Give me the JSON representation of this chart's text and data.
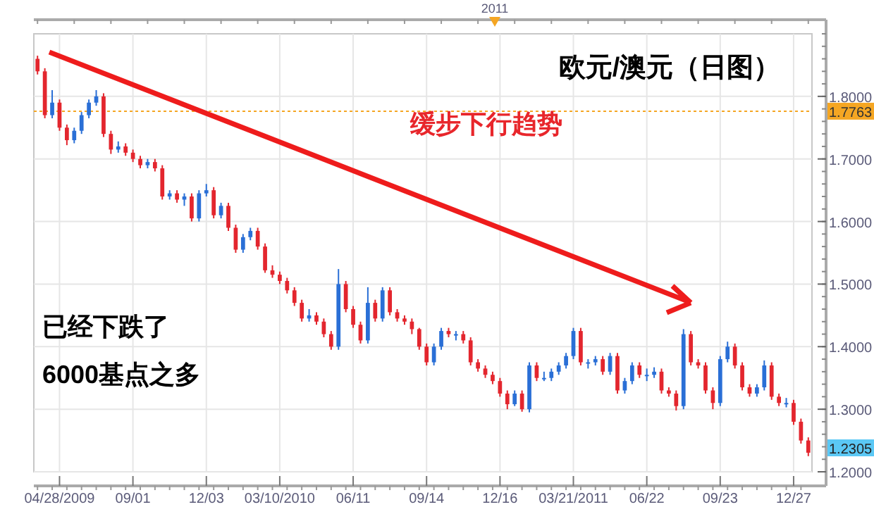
{
  "chart_data": {
    "type": "candlestick",
    "title": "欧元/澳元（日图）",
    "categories": [
      null,
      null,
      null,
      "04/28/2009",
      null,
      null,
      null,
      null,
      null,
      null,
      null,
      null,
      null,
      "09/01",
      null,
      null,
      null,
      null,
      null,
      null,
      null,
      null,
      null,
      "12/03",
      null,
      null,
      null,
      null,
      null,
      null,
      null,
      null,
      null,
      "03/10/2010",
      null,
      null,
      null,
      null,
      null,
      null,
      null,
      null,
      null,
      "06/11",
      null,
      null,
      null,
      null,
      null,
      null,
      null,
      null,
      null,
      "09/14",
      null,
      null,
      null,
      null,
      null,
      null,
      null,
      null,
      null,
      "12/16",
      null,
      null,
      null,
      null,
      null,
      null,
      null,
      null,
      null,
      "03/21/2011",
      null,
      null,
      null,
      null,
      null,
      null,
      null,
      null,
      null,
      "06/22",
      null,
      null,
      null,
      null,
      null,
      null,
      null,
      null,
      null,
      "09/23",
      null,
      null,
      null,
      null,
      null,
      null,
      null,
      null,
      null,
      "12/27",
      null,
      null
    ],
    "ohlc": [
      [
        1.86,
        1.865,
        1.835,
        1.84
      ],
      [
        1.84,
        1.845,
        1.765,
        1.77
      ],
      [
        1.77,
        1.81,
        1.765,
        1.79
      ],
      [
        1.79,
        1.795,
        1.745,
        1.75
      ],
      [
        1.75,
        1.755,
        1.722,
        1.73
      ],
      [
        1.73,
        1.75,
        1.725,
        1.745
      ],
      [
        1.745,
        1.775,
        1.74,
        1.77
      ],
      [
        1.77,
        1.795,
        1.765,
        1.79
      ],
      [
        1.79,
        1.81,
        1.785,
        1.8
      ],
      [
        1.8,
        1.805,
        1.735,
        1.74
      ],
      [
        1.74,
        1.745,
        1.708,
        1.715
      ],
      [
        1.715,
        1.728,
        1.71,
        1.72
      ],
      [
        1.72,
        1.725,
        1.705,
        1.71
      ],
      [
        1.71,
        1.715,
        1.695,
        1.7
      ],
      [
        1.7,
        1.705,
        1.685,
        1.69
      ],
      [
        1.69,
        1.7,
        1.685,
        1.695
      ],
      [
        1.695,
        1.7,
        1.68,
        1.685
      ],
      [
        1.685,
        1.69,
        1.635,
        1.64
      ],
      [
        1.64,
        1.65,
        1.635,
        1.645
      ],
      [
        1.645,
        1.65,
        1.63,
        1.635
      ],
      [
        1.635,
        1.645,
        1.625,
        1.64
      ],
      [
        1.64,
        1.645,
        1.6,
        1.605
      ],
      [
        1.605,
        1.65,
        1.6,
        1.645
      ],
      [
        1.645,
        1.66,
        1.64,
        1.65
      ],
      [
        1.65,
        1.655,
        1.605,
        1.61
      ],
      [
        1.61,
        1.63,
        1.605,
        1.625
      ],
      [
        1.625,
        1.63,
        1.585,
        1.59
      ],
      [
        1.59,
        1.595,
        1.55,
        1.555
      ],
      [
        1.555,
        1.58,
        1.55,
        1.575
      ],
      [
        1.575,
        1.59,
        1.57,
        1.585
      ],
      [
        1.585,
        1.59,
        1.555,
        1.56
      ],
      [
        1.56,
        1.565,
        1.518,
        1.522
      ],
      [
        1.522,
        1.53,
        1.51,
        1.515
      ],
      [
        1.515,
        1.52,
        1.5,
        1.505
      ],
      [
        1.505,
        1.51,
        1.485,
        1.49
      ],
      [
        1.49,
        1.495,
        1.465,
        1.47
      ],
      [
        1.47,
        1.475,
        1.44,
        1.445
      ],
      [
        1.445,
        1.46,
        1.44,
        1.45
      ],
      [
        1.45,
        1.455,
        1.435,
        1.44
      ],
      [
        1.44,
        1.445,
        1.415,
        1.42
      ],
      [
        1.42,
        1.425,
        1.395,
        1.4
      ],
      [
        1.4,
        1.524,
        1.395,
        1.5
      ],
      [
        1.5,
        1.505,
        1.455,
        1.46
      ],
      [
        1.46,
        1.465,
        1.43,
        1.435
      ],
      [
        1.435,
        1.44,
        1.405,
        1.41
      ],
      [
        1.41,
        1.495,
        1.405,
        1.47
      ],
      [
        1.47,
        1.475,
        1.44,
        1.445
      ],
      [
        1.445,
        1.495,
        1.44,
        1.49
      ],
      [
        1.49,
        1.495,
        1.45,
        1.455
      ],
      [
        1.455,
        1.46,
        1.44,
        1.445
      ],
      [
        1.445,
        1.45,
        1.435,
        1.44
      ],
      [
        1.44,
        1.445,
        1.42,
        1.428
      ],
      [
        1.428,
        1.43,
        1.395,
        1.4
      ],
      [
        1.4,
        1.405,
        1.37,
        1.375
      ],
      [
        1.375,
        1.405,
        1.37,
        1.4
      ],
      [
        1.4,
        1.43,
        1.395,
        1.425
      ],
      [
        1.425,
        1.43,
        1.415,
        1.42
      ],
      [
        1.42,
        1.425,
        1.41,
        1.42
      ],
      [
        1.42,
        1.425,
        1.405,
        1.41
      ],
      [
        1.41,
        1.415,
        1.37,
        1.375
      ],
      [
        1.375,
        1.38,
        1.36,
        1.365
      ],
      [
        1.365,
        1.37,
        1.35,
        1.355
      ],
      [
        1.355,
        1.36,
        1.34,
        1.345
      ],
      [
        1.345,
        1.35,
        1.32,
        1.325
      ],
      [
        1.325,
        1.33,
        1.3,
        1.308
      ],
      [
        1.308,
        1.33,
        1.305,
        1.325
      ],
      [
        1.325,
        1.33,
        1.296,
        1.3
      ],
      [
        1.3,
        1.375,
        1.295,
        1.37
      ],
      [
        1.37,
        1.375,
        1.345,
        1.35
      ],
      [
        1.35,
        1.36,
        1.345,
        1.35
      ],
      [
        1.35,
        1.365,
        1.345,
        1.36
      ],
      [
        1.36,
        1.375,
        1.355,
        1.37
      ],
      [
        1.37,
        1.39,
        1.365,
        1.385
      ],
      [
        1.385,
        1.43,
        1.38,
        1.425
      ],
      [
        1.425,
        1.43,
        1.37,
        1.375
      ],
      [
        1.375,
        1.38,
        1.365,
        1.375
      ],
      [
        1.375,
        1.385,
        1.37,
        1.38
      ],
      [
        1.38,
        1.385,
        1.355,
        1.36
      ],
      [
        1.36,
        1.39,
        1.355,
        1.385
      ],
      [
        1.385,
        1.39,
        1.325,
        1.33
      ],
      [
        1.33,
        1.35,
        1.325,
        1.345
      ],
      [
        1.345,
        1.375,
        1.34,
        1.37
      ],
      [
        1.37,
        1.375,
        1.35,
        1.355
      ],
      [
        1.355,
        1.365,
        1.345,
        1.355
      ],
      [
        1.355,
        1.367,
        1.35,
        1.36
      ],
      [
        1.36,
        1.365,
        1.325,
        1.33
      ],
      [
        1.33,
        1.335,
        1.32,
        1.325
      ],
      [
        1.325,
        1.33,
        1.298,
        1.305
      ],
      [
        1.305,
        1.428,
        1.3,
        1.42
      ],
      [
        1.42,
        1.425,
        1.37,
        1.375
      ],
      [
        1.375,
        1.38,
        1.365,
        1.37
      ],
      [
        1.37,
        1.375,
        1.325,
        1.33
      ],
      [
        1.33,
        1.335,
        1.3,
        1.31
      ],
      [
        1.31,
        1.385,
        1.305,
        1.38
      ],
      [
        1.38,
        1.408,
        1.375,
        1.4
      ],
      [
        1.4,
        1.405,
        1.365,
        1.37
      ],
      [
        1.37,
        1.375,
        1.33,
        1.335
      ],
      [
        1.335,
        1.34,
        1.32,
        1.325
      ],
      [
        1.325,
        1.34,
        1.32,
        1.335
      ],
      [
        1.335,
        1.378,
        1.33,
        1.37
      ],
      [
        1.37,
        1.375,
        1.315,
        1.32
      ],
      [
        1.32,
        1.325,
        1.305,
        1.31
      ],
      [
        1.31,
        1.318,
        1.303,
        1.31
      ],
      [
        1.31,
        1.315,
        1.275,
        1.28
      ],
      [
        1.28,
        1.285,
        1.245,
        1.25
      ],
      [
        1.25,
        1.255,
        1.225,
        1.2305
      ]
    ],
    "colors": [
      "#e3262e",
      "#e3262e",
      "#2a6fd6",
      "#e3262e",
      "#e3262e",
      "#2a6fd6",
      "#2a6fd6",
      "#2a6fd6",
      "#2a6fd6",
      "#e3262e",
      "#e3262e",
      "#2a6fd6",
      "#e3262e",
      "#e3262e",
      "#e3262e",
      "#2a6fd6",
      "#e3262e",
      "#e3262e",
      "#2a6fd6",
      "#e3262e",
      "#2a6fd6",
      "#e3262e",
      "#2a6fd6",
      "#2a6fd6",
      "#e3262e",
      "#2a6fd6",
      "#e3262e",
      "#e3262e",
      "#2a6fd6",
      "#2a6fd6",
      "#e3262e",
      "#e3262e",
      "#e3262e",
      "#e3262e",
      "#e3262e",
      "#e3262e",
      "#e3262e",
      "#2a6fd6",
      "#e3262e",
      "#e3262e",
      "#e3262e",
      "#2a6fd6",
      "#e3262e",
      "#e3262e",
      "#e3262e",
      "#2a6fd6",
      "#e3262e",
      "#2a6fd6",
      "#e3262e",
      "#e3262e",
      "#e3262e",
      "#e3262e",
      "#e3262e",
      "#e3262e",
      "#2a6fd6",
      "#2a6fd6",
      "#e3262e",
      "#2a6fd6",
      "#e3262e",
      "#e3262e",
      "#e3262e",
      "#e3262e",
      "#e3262e",
      "#e3262e",
      "#e3262e",
      "#2a6fd6",
      "#e3262e",
      "#2a6fd6",
      "#e3262e",
      "#2a6fd6",
      "#2a6fd6",
      "#2a6fd6",
      "#2a6fd6",
      "#2a6fd6",
      "#e3262e",
      "#2a6fd6",
      "#2a6fd6",
      "#e3262e",
      "#2a6fd6",
      "#e3262e",
      "#2a6fd6",
      "#2a6fd6",
      "#e3262e",
      "#2a6fd6",
      "#2a6fd6",
      "#e3262e",
      "#e3262e",
      "#e3262e",
      "#2a6fd6",
      "#e3262e",
      "#e3262e",
      "#e3262e",
      "#e3262e",
      "#2a6fd6",
      "#2a6fd6",
      "#e3262e",
      "#e3262e",
      "#e3262e",
      "#2a6fd6",
      "#2a6fd6",
      "#e3262e",
      "#e3262e",
      "#2a6fd6",
      "#e3262e",
      "#e3262e",
      "#e3262e"
    ],
    "ylim": [
      1.2,
      1.9
    ],
    "yticks": [
      {
        "value": 1.2,
        "label": "1.2000"
      },
      {
        "value": 1.3,
        "label": "1.3000"
      },
      {
        "value": 1.4,
        "label": "1.4000"
      },
      {
        "value": 1.5,
        "label": "1.5000"
      },
      {
        "value": 1.6,
        "label": "1.6000"
      },
      {
        "value": 1.7,
        "label": "1.7000"
      },
      {
        "value": 1.8,
        "label": "1.8000"
      }
    ],
    "grid": true,
    "ref_lines": [
      {
        "axis": "y",
        "value": 1.7763,
        "label": "1.7763",
        "color": "#f5a623",
        "line_style": "dotted"
      }
    ],
    "annotations": [
      "缓步下行趋势",
      "已经下跌了",
      "6000基点之多",
      "2011",
      "1.2305"
    ]
  }
}
